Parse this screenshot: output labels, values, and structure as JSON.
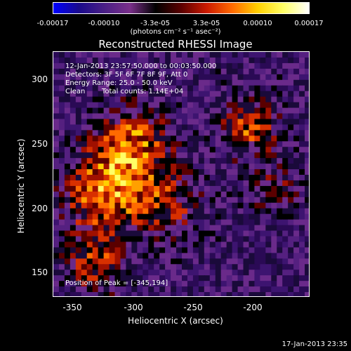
{
  "colorbar": {
    "ticks": [
      "-0.00017",
      "-0.00010",
      "-3.3e-05",
      "3.3e-05",
      "0.00010",
      "0.00017"
    ],
    "units": "(photons cm⁻² s⁻¹ asec⁻²)",
    "colors": [
      "#0000ff",
      "#1a0a8c",
      "#4a1f86",
      "#7a2f8a",
      "#000000",
      "#5a0000",
      "#cc1a00",
      "#ff6a00",
      "#ffd000",
      "#ffff66",
      "#ffffff"
    ]
  },
  "title": "Reconstructed RHESSI Image",
  "info": {
    "time_range": "12-Jan-2013 23:57:50.000 to 00:03:50.000",
    "detectors": "Detectors: 3F 5F 6F 7F 8F 9F, Att 0",
    "energy": "Energy Range: 25.0 - 50.0 keV",
    "algorithm": "Clean",
    "counts": "Total counts: 1.14E+04",
    "peak": "Position of Peak = [-345,194]"
  },
  "axes": {
    "x_label": "Heliocentric X (arcsec)",
    "y_label": "Heliocentric Y (arcsec)",
    "x_ticks": [
      "-350",
      "-300",
      "-250",
      "-200"
    ],
    "y_ticks": [
      "300",
      "250",
      "200",
      "150"
    ]
  },
  "timestamp": "17-Jan-2013 23:35"
}
